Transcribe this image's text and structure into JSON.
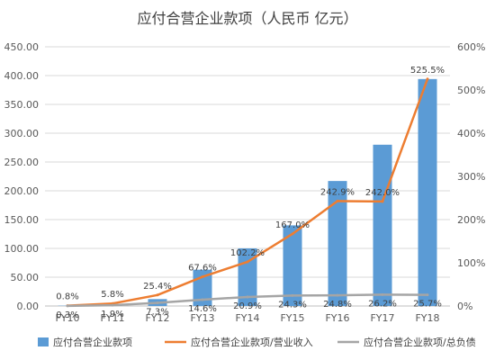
{
  "chart_data": {
    "type": "bar",
    "title": "应付合营企业款项（人民币 亿元）",
    "categories": [
      "FY10",
      "FY11",
      "FY12",
      "FY13",
      "FY14",
      "FY15",
      "FY16",
      "FY17",
      "FY18"
    ],
    "ylim": [
      0,
      450
    ],
    "y_ticks": [
      "0.00",
      "50.00",
      "100.00",
      "150.00",
      "200.00",
      "250.00",
      "300.00",
      "350.00",
      "400.00",
      "450.00"
    ],
    "y2lim": [
      0,
      600
    ],
    "y2_ticks": [
      "0%",
      "100%",
      "200%",
      "300%",
      "400%",
      "500%",
      "600%"
    ],
    "grid": true,
    "legend_position": "bottom",
    "series": [
      {
        "name": "应付合营企业款项",
        "type": "bar",
        "axis": "left",
        "color": "#5B9BD5",
        "values": [
          0.5,
          1.2,
          12,
          63,
          100,
          140,
          217,
          280,
          394
        ]
      },
      {
        "name": "应付合营企业款项/营业收入",
        "type": "line",
        "axis": "right",
        "color": "#ED7D31",
        "values": [
          0.8,
          5.8,
          25.4,
          67.6,
          102.2,
          167.0,
          242.9,
          242.0,
          525.5
        ],
        "labels": [
          "0.8%",
          "5.8%",
          "25.4%",
          "67.6%",
          "102.2%",
          "167.0%",
          "242.9%",
          "242.0%",
          "525.5%"
        ]
      },
      {
        "name": "应付合营企业款项/总负债",
        "type": "line",
        "axis": "right",
        "color": "#A5A5A5",
        "values": [
          0.3,
          1.9,
          7.3,
          14.6,
          20.9,
          24.3,
          24.8,
          26.2,
          25.7
        ],
        "labels": [
          "0.3%",
          "1.9%",
          "7.3%",
          "14.6%",
          "20.9%",
          "24.3%",
          "24.8%",
          "26.2%",
          "25.7%"
        ]
      }
    ]
  }
}
